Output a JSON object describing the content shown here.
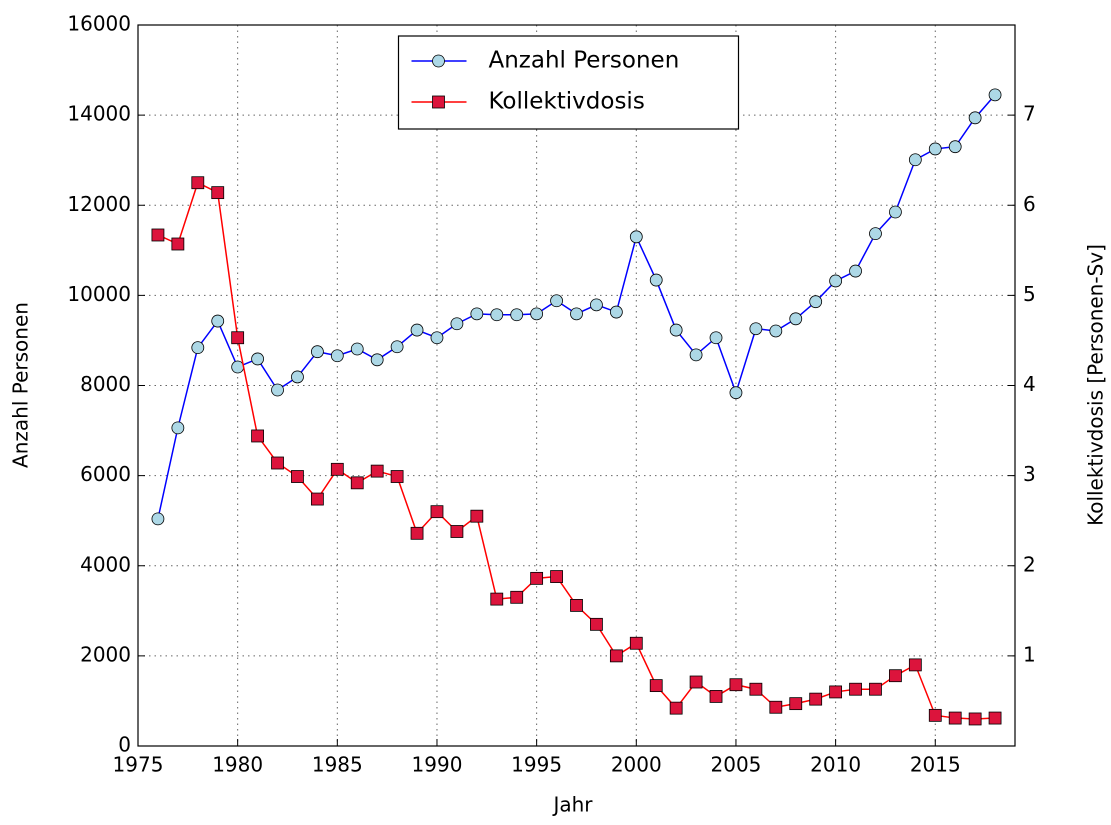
{
  "chart_data": {
    "type": "line",
    "x_label": "Jahr",
    "y_label": "Anzahl Personen",
    "y2_label": "Kollektivdosis [Personen-Sv]",
    "x": [
      1976,
      1977,
      1978,
      1979,
      1980,
      1981,
      1982,
      1983,
      1984,
      1985,
      1986,
      1987,
      1988,
      1989,
      1990,
      1991,
      1992,
      1993,
      1994,
      1995,
      1996,
      1997,
      1998,
      1999,
      2000,
      2001,
      2002,
      2003,
      2004,
      2005,
      2006,
      2007,
      2008,
      2009,
      2010,
      2011,
      2012,
      2013,
      2014,
      2015,
      2016,
      2017,
      2018
    ],
    "series": [
      {
        "name": "Anzahl Personen",
        "color": "#0000ff",
        "marker": "circle",
        "marker_fill": "#add8e6",
        "values": [
          5040,
          7060,
          8840,
          9430,
          8410,
          8590,
          7900,
          8190,
          8750,
          8660,
          8810,
          8570,
          8860,
          9230,
          9060,
          9370,
          9590,
          9570,
          9570,
          9590,
          9880,
          9590,
          9790,
          9630,
          11300,
          10340,
          9230,
          8680,
          9060,
          7840,
          9260,
          9210,
          9480,
          9860,
          10320,
          10540,
          11370,
          11850,
          13010,
          13250,
          13300,
          13940,
          14450
        ]
      },
      {
        "name": "Kollektivdosis",
        "color": "#ff0000",
        "marker": "square",
        "marker_fill": "#dc143c",
        "axis": "y2",
        "values": [
          5.67,
          5.57,
          6.25,
          6.14,
          4.53,
          3.44,
          3.14,
          2.99,
          2.74,
          3.07,
          2.92,
          3.05,
          2.99,
          2.36,
          2.6,
          2.38,
          2.55,
          1.63,
          1.65,
          1.86,
          1.88,
          1.56,
          1.35,
          1.0,
          1.14,
          0.67,
          0.42,
          0.71,
          0.55,
          0.68,
          0.63,
          0.43,
          0.47,
          0.52,
          0.6,
          0.63,
          0.63,
          0.78,
          0.9,
          0.34,
          0.31,
          0.3,
          0.31
        ]
      }
    ],
    "xlim": [
      1975,
      2019
    ],
    "xticks": [
      1975,
      1980,
      1985,
      1990,
      1995,
      2000,
      2005,
      2010,
      2015
    ],
    "ylim": [
      0,
      16000
    ],
    "yticks": [
      0,
      2000,
      4000,
      6000,
      8000,
      10000,
      12000,
      14000,
      16000
    ],
    "y2lim": [
      0,
      8
    ],
    "y2ticks": [
      1,
      2,
      3,
      4,
      5,
      6,
      7
    ],
    "grid": true,
    "legend": "upper center"
  }
}
